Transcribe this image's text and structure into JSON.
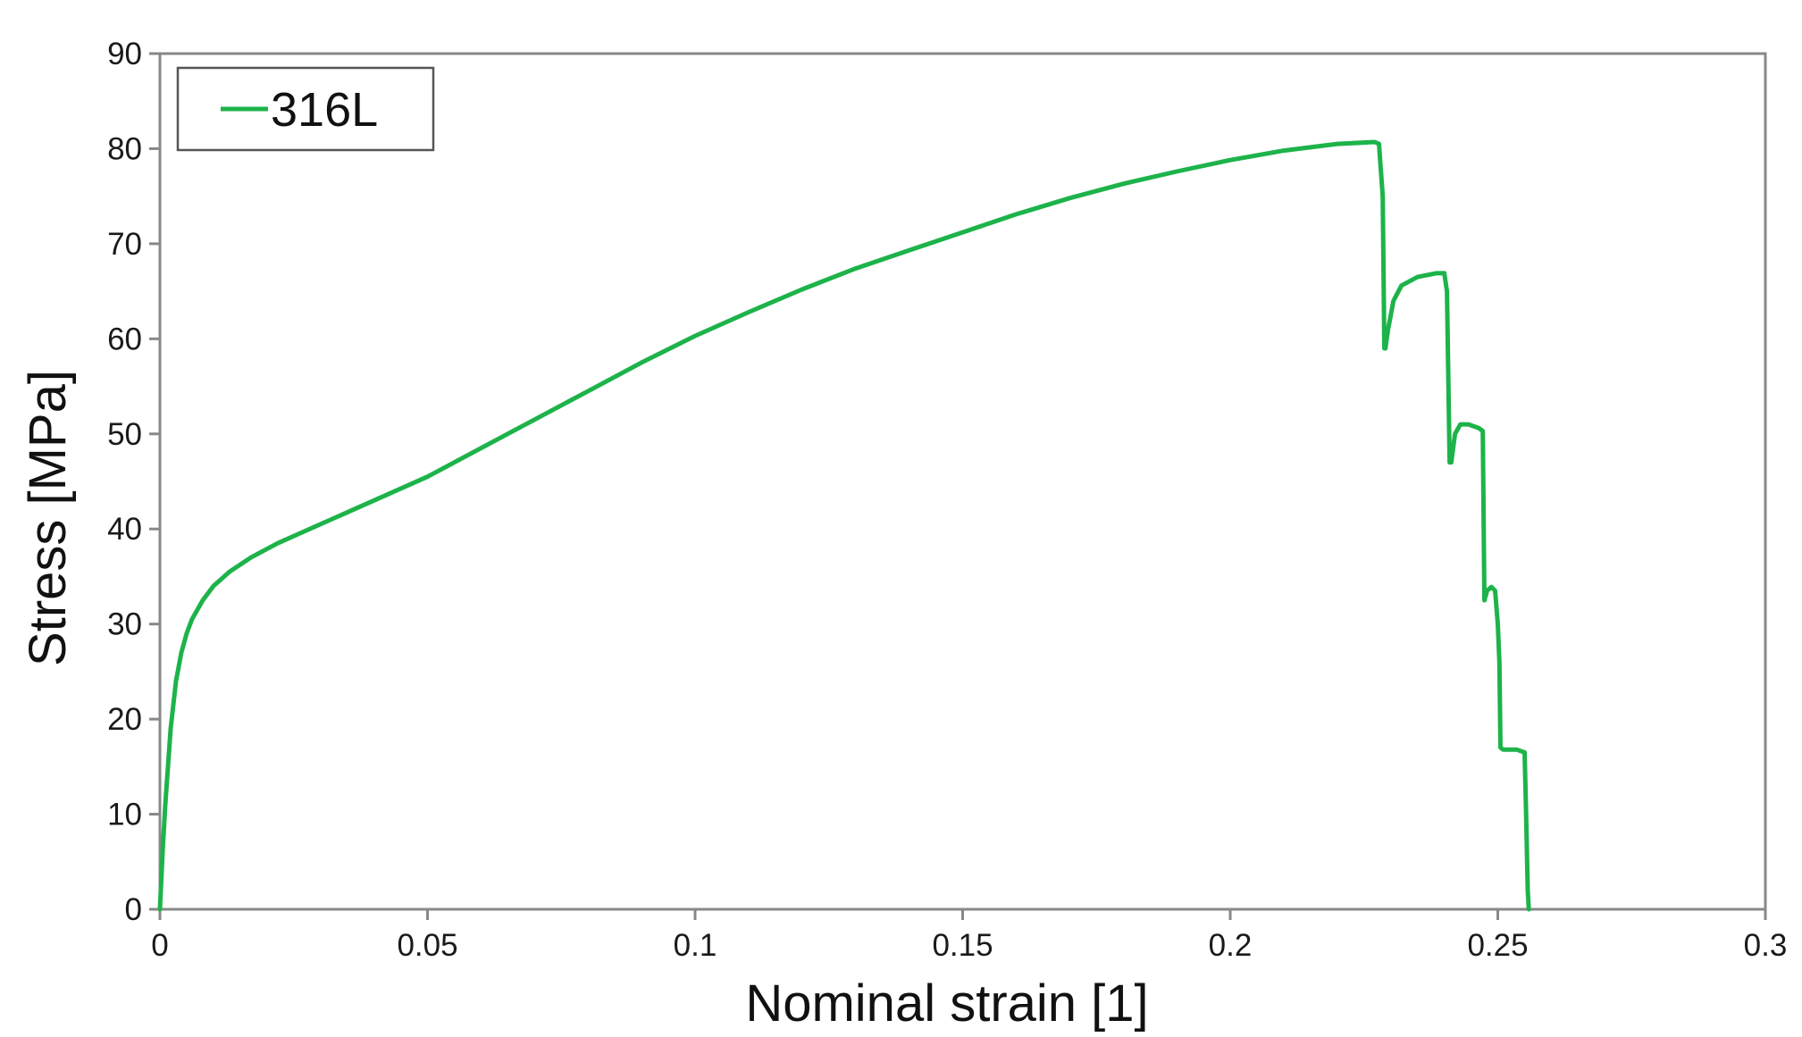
{
  "chart_data": {
    "type": "line",
    "title": "",
    "xlabel": "Nominal strain [1]",
    "ylabel": "Stress [MPa]",
    "xlim": [
      0,
      0.3
    ],
    "ylim": [
      0,
      90
    ],
    "xticks": [
      "0",
      "0.05",
      "0.1",
      "0.15",
      "0.2",
      "0.25",
      "0.3"
    ],
    "xtick_values": [
      0,
      0.05,
      0.1,
      0.15,
      0.2,
      0.25,
      0.3
    ],
    "yticks": [
      "0",
      "10",
      "20",
      "30",
      "40",
      "50",
      "60",
      "70",
      "80",
      "90"
    ],
    "ytick_values": [
      0,
      10,
      20,
      30,
      40,
      50,
      60,
      70,
      80,
      90
    ],
    "grid": false,
    "legend_position": "top-left",
    "series": [
      {
        "name": "316L",
        "color": "#1db34a",
        "x": [
          0,
          0.0005,
          0.001,
          0.002,
          0.003,
          0.004,
          0.005,
          0.006,
          0.008,
          0.01,
          0.013,
          0.017,
          0.022,
          0.03,
          0.04,
          0.05,
          0.06,
          0.07,
          0.08,
          0.09,
          0.1,
          0.11,
          0.12,
          0.13,
          0.14,
          0.15,
          0.16,
          0.17,
          0.18,
          0.19,
          0.2,
          0.21,
          0.22,
          0.227,
          0.2278,
          0.2285,
          0.2288,
          0.229,
          0.2295,
          0.2305,
          0.232,
          0.235,
          0.2385,
          0.24,
          0.2405,
          0.241,
          0.2413,
          0.242,
          0.243,
          0.2445,
          0.2465,
          0.2472,
          0.2475,
          0.248,
          0.2488,
          0.2495,
          0.25,
          0.2503,
          0.2505,
          0.251,
          0.2518,
          0.2535,
          0.2545,
          0.255,
          0.2553,
          0.2556,
          0.2558
        ],
        "y": [
          0,
          6,
          11,
          19,
          24,
          27,
          29,
          30.5,
          32.5,
          34,
          35.5,
          37,
          38.5,
          40.5,
          43,
          45.5,
          48.5,
          51.5,
          54.5,
          57.5,
          60.3,
          62.8,
          65.2,
          67.4,
          69.3,
          71.2,
          73.1,
          74.8,
          76.3,
          77.6,
          78.8,
          79.8,
          80.5,
          80.7,
          80.5,
          75,
          59,
          59,
          61,
          64,
          65.6,
          66.5,
          66.9,
          66.9,
          65,
          47,
          47,
          50,
          51,
          51,
          50.6,
          50.3,
          32.5,
          33.5,
          33.9,
          33.5,
          30,
          26,
          17,
          16.8,
          16.8,
          16.8,
          16.6,
          16.5,
          10,
          2,
          0
        ]
      }
    ]
  }
}
